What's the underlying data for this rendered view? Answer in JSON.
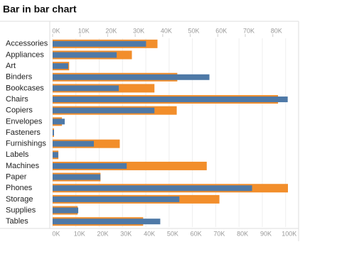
{
  "chart_data": {
    "type": "bar-in-bar",
    "title": "Bar in bar chart",
    "categories": [
      "Accessories",
      "Appliances",
      "Art",
      "Binders",
      "Bookcases",
      "Chairs",
      "Copiers",
      "Envelopes",
      "Fasteners",
      "Furnishings",
      "Labels",
      "Machines",
      "Paper",
      "Phones",
      "Storage",
      "Supplies",
      "Tables"
    ],
    "series": [
      {
        "color": "#f28e2b",
        "axis": "x2",
        "values": [
          38100,
          28800,
          6000,
          45300,
          37000,
          81900,
          45100,
          3400,
          500,
          24400,
          2100,
          56000,
          17400,
          85500,
          60600,
          9100,
          32900
        ]
      },
      {
        "color": "#4e79a7",
        "axis": "x",
        "values": [
          40100,
          27500,
          6700,
          67300,
          28400,
          100900,
          43700,
          5200,
          600,
          17700,
          2400,
          31800,
          20500,
          85600,
          54400,
          11000,
          46200
        ]
      }
    ],
    "x2lim": [
      0,
      85500
    ],
    "x2ticks": [
      {
        "value": 0,
        "label": "0K"
      },
      {
        "value": 10000,
        "label": "10K"
      },
      {
        "value": 20000,
        "label": "20K"
      },
      {
        "value": 30000,
        "label": "30K"
      },
      {
        "value": 40000,
        "label": "40K"
      },
      {
        "value": 50000,
        "label": "50K"
      },
      {
        "value": 60000,
        "label": "60K"
      },
      {
        "value": 70000,
        "label": "70K"
      },
      {
        "value": 80000,
        "label": "80K"
      }
    ],
    "xlim": [
      0,
      101000
    ],
    "xticks": [
      {
        "value": 0,
        "label": "0K"
      },
      {
        "value": 10000,
        "label": "10K"
      },
      {
        "value": 20000,
        "label": "20K"
      },
      {
        "value": 30000,
        "label": "30K"
      },
      {
        "value": 40000,
        "label": "40K"
      },
      {
        "value": 50000,
        "label": "50K"
      },
      {
        "value": 60000,
        "label": "60K"
      },
      {
        "value": 70000,
        "label": "70K"
      },
      {
        "value": 80000,
        "label": "80K"
      },
      {
        "value": 90000,
        "label": "90K"
      },
      {
        "value": 100000,
        "label": "100K"
      }
    ],
    "grid": true
  }
}
